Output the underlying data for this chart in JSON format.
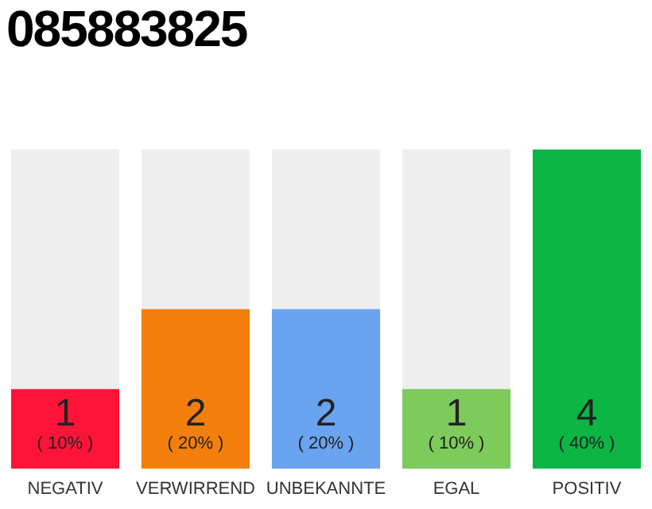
{
  "chart_data": {
    "type": "bar",
    "title": "085883825",
    "categories": [
      "NEGATIV",
      "VERWIRREND",
      "UNBEKANNTE",
      "EGAL",
      "POSITIV"
    ],
    "values": [
      1,
      2,
      2,
      1,
      4
    ],
    "colors": [
      "#ff1439",
      "#f27e0c",
      "#6aa3ef",
      "#7dcb5b",
      "#0db545"
    ],
    "ylim": [
      0,
      4
    ],
    "data_labels": true,
    "grid": false,
    "legend": false,
    "tick_labels": "x",
    "annotations": [
      "( 10% )",
      "( 20% )",
      "( 20% )",
      "( 10% )",
      "( 40% )"
    ]
  }
}
